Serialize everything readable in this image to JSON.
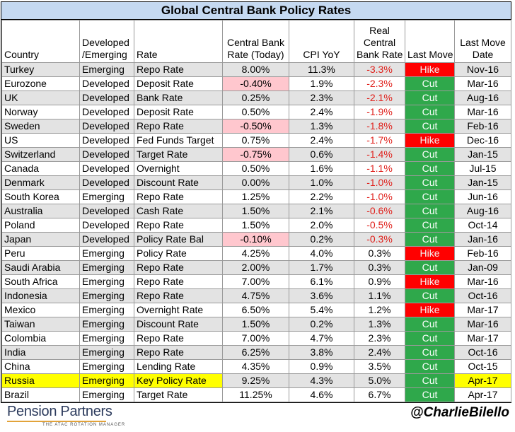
{
  "title": "Global Central Bank Policy Rates",
  "headers": {
    "country": "Country",
    "dev_line1": "Developed",
    "dev_line2": "/Emerging",
    "rate": "Rate",
    "cb_line1": "Central Bank",
    "cb_line2": "Rate (Today)",
    "cpi": "CPI YoY",
    "real_line1": "Real",
    "real_line2": "Central",
    "real_line3": "Bank Rate",
    "last_move": "Last Move",
    "date_line1": "Last Move",
    "date_line2": "Date"
  },
  "rows": [
    {
      "country": "Turkey",
      "dev": "Emerging",
      "rate": "Repo Rate",
      "cb": "8.00%",
      "cpi": "11.3%",
      "real": "-3.3%",
      "move": "Hike",
      "date": "Nov-16",
      "cb_neg": false,
      "real_neg": true,
      "highlight": false
    },
    {
      "country": "Eurozone",
      "dev": "Developed",
      "rate": "Deposit Rate",
      "cb": "-0.40%",
      "cpi": "1.9%",
      "real": "-2.3%",
      "move": "Cut",
      "date": "Mar-16",
      "cb_neg": true,
      "real_neg": true,
      "highlight": false
    },
    {
      "country": "UK",
      "dev": "Developed",
      "rate": "Bank Rate",
      "cb": "0.25%",
      "cpi": "2.3%",
      "real": "-2.1%",
      "move": "Cut",
      "date": "Aug-16",
      "cb_neg": false,
      "real_neg": true,
      "highlight": false
    },
    {
      "country": "Norway",
      "dev": "Developed",
      "rate": "Deposit Rate",
      "cb": "0.50%",
      "cpi": "2.4%",
      "real": "-1.9%",
      "move": "Cut",
      "date": "Mar-16",
      "cb_neg": false,
      "real_neg": true,
      "highlight": false
    },
    {
      "country": "Sweden",
      "dev": "Developed",
      "rate": "Repo Rate",
      "cb": "-0.50%",
      "cpi": "1.3%",
      "real": "-1.8%",
      "move": "Cut",
      "date": "Feb-16",
      "cb_neg": true,
      "real_neg": true,
      "highlight": false
    },
    {
      "country": "US",
      "dev": "Developed",
      "rate": "Fed Funds Target",
      "cb": "0.75%",
      "cpi": "2.4%",
      "real": "-1.7%",
      "move": "Hike",
      "date": "Dec-16",
      "cb_neg": false,
      "real_neg": true,
      "highlight": false
    },
    {
      "country": "Switzerland",
      "dev": "Developed",
      "rate": "Target Rate",
      "cb": "-0.75%",
      "cpi": "0.6%",
      "real": "-1.4%",
      "move": "Cut",
      "date": "Jan-15",
      "cb_neg": true,
      "real_neg": true,
      "highlight": false
    },
    {
      "country": "Canada",
      "dev": "Developed",
      "rate": "Overnight",
      "cb": "0.50%",
      "cpi": "1.6%",
      "real": "-1.1%",
      "move": "Cut",
      "date": "Jul-15",
      "cb_neg": false,
      "real_neg": true,
      "highlight": false
    },
    {
      "country": "Denmark",
      "dev": "Developed",
      "rate": "Discount Rate",
      "cb": "0.00%",
      "cpi": "1.0%",
      "real": "-1.0%",
      "move": "Cut",
      "date": "Jan-15",
      "cb_neg": false,
      "real_neg": true,
      "highlight": false
    },
    {
      "country": "South Korea",
      "dev": "Emerging",
      "rate": "Repo Rate",
      "cb": "1.25%",
      "cpi": "2.2%",
      "real": "-1.0%",
      "move": "Cut",
      "date": "Jun-16",
      "cb_neg": false,
      "real_neg": true,
      "highlight": false
    },
    {
      "country": "Australia",
      "dev": "Developed",
      "rate": "Cash Rate",
      "cb": "1.50%",
      "cpi": "2.1%",
      "real": "-0.6%",
      "move": "Cut",
      "date": "Aug-16",
      "cb_neg": false,
      "real_neg": true,
      "highlight": false
    },
    {
      "country": "Poland",
      "dev": "Developed",
      "rate": "Repo Rate",
      "cb": "1.50%",
      "cpi": "2.0%",
      "real": "-0.5%",
      "move": "Cut",
      "date": "Oct-14",
      "cb_neg": false,
      "real_neg": true,
      "highlight": false
    },
    {
      "country": "Japan",
      "dev": "Developed",
      "rate": "Policy Rate Bal",
      "cb": "-0.10%",
      "cpi": "0.2%",
      "real": "-0.3%",
      "move": "Cut",
      "date": "Jan-16",
      "cb_neg": true,
      "real_neg": true,
      "highlight": false
    },
    {
      "country": "Peru",
      "dev": "Emerging",
      "rate": "Policy Rate",
      "cb": "4.25%",
      "cpi": "4.0%",
      "real": "0.3%",
      "move": "Hike",
      "date": "Feb-16",
      "cb_neg": false,
      "real_neg": false,
      "highlight": false
    },
    {
      "country": "Saudi Arabia",
      "dev": "Emerging",
      "rate": "Repo Rate",
      "cb": "2.00%",
      "cpi": "1.7%",
      "real": "0.3%",
      "move": "Cut",
      "date": "Jan-09",
      "cb_neg": false,
      "real_neg": false,
      "highlight": false
    },
    {
      "country": "South Africa",
      "dev": "Emerging",
      "rate": "Repo Rate",
      "cb": "7.00%",
      "cpi": "6.1%",
      "real": "0.9%",
      "move": "Hike",
      "date": "Mar-16",
      "cb_neg": false,
      "real_neg": false,
      "highlight": false
    },
    {
      "country": "Indonesia",
      "dev": "Emerging",
      "rate": "Repo Rate",
      "cb": "4.75%",
      "cpi": "3.6%",
      "real": "1.1%",
      "move": "Cut",
      "date": "Oct-16",
      "cb_neg": false,
      "real_neg": false,
      "highlight": false
    },
    {
      "country": "Mexico",
      "dev": "Emerging",
      "rate": "Overnight Rate",
      "cb": "6.50%",
      "cpi": "5.4%",
      "real": "1.2%",
      "move": "Hike",
      "date": "Mar-17",
      "cb_neg": false,
      "real_neg": false,
      "highlight": false
    },
    {
      "country": "Taiwan",
      "dev": "Emerging",
      "rate": "Discount Rate",
      "cb": "1.50%",
      "cpi": "0.2%",
      "real": "1.3%",
      "move": "Cut",
      "date": "Mar-16",
      "cb_neg": false,
      "real_neg": false,
      "highlight": false
    },
    {
      "country": "Colombia",
      "dev": "Emerging",
      "rate": "Repo Rate",
      "cb": "7.00%",
      "cpi": "4.7%",
      "real": "2.3%",
      "move": "Cut",
      "date": "Mar-17",
      "cb_neg": false,
      "real_neg": false,
      "highlight": false
    },
    {
      "country": "India",
      "dev": "Emerging",
      "rate": "Repo Rate",
      "cb": "6.25%",
      "cpi": "3.8%",
      "real": "2.4%",
      "move": "Cut",
      "date": "Oct-16",
      "cb_neg": false,
      "real_neg": false,
      "highlight": false
    },
    {
      "country": "China",
      "dev": "Emerging",
      "rate": "Lending Rate",
      "cb": "4.35%",
      "cpi": "0.9%",
      "real": "3.5%",
      "move": "Cut",
      "date": "Oct-15",
      "cb_neg": false,
      "real_neg": false,
      "highlight": false
    },
    {
      "country": "Russia",
      "dev": "Emerging",
      "rate": "Key Policy Rate",
      "cb": "9.25%",
      "cpi": "4.3%",
      "real": "5.0%",
      "move": "Cut",
      "date": "Apr-17",
      "cb_neg": false,
      "real_neg": false,
      "highlight": true
    },
    {
      "country": "Brazil",
      "dev": "Emerging",
      "rate": "Target Rate",
      "cb": "11.25%",
      "cpi": "4.6%",
      "real": "6.7%",
      "move": "Cut",
      "date": "Apr-17",
      "cb_neg": false,
      "real_neg": false,
      "highlight": false
    }
  ],
  "footer": {
    "logo_text": "Pension Partners",
    "logo_tagline": "THE ATAC ROTATION MANAGER",
    "handle": "@CharlieBilello"
  },
  "colors": {
    "title_bg": "#c5d9f1",
    "hike": "#ff0000",
    "cut": "#2fa84b",
    "negative_fill": "#ffc7ce",
    "negative_text": "#e0201b",
    "highlight": "#ffff00"
  }
}
